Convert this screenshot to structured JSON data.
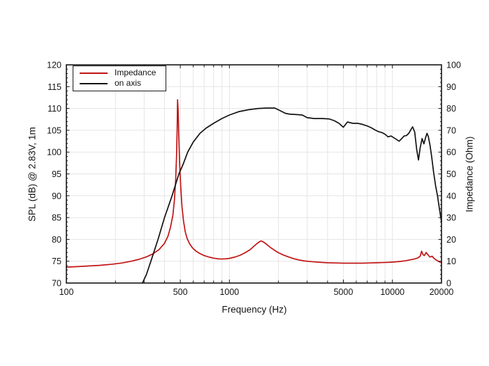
{
  "figure": {
    "background": "#ffffff",
    "frame_color": "#161616",
    "grid_color": "#e5e5e5",
    "tick_color": "#161616",
    "text_color": "#141414"
  },
  "chart_data": {
    "type": "line",
    "title": "",
    "x_scale": "log",
    "xlabel": "Frequency (Hz)",
    "ylabel_left": "SPL (dB) @ 2.83V, 1m",
    "ylabel_right": "Impedance (Ohm)",
    "x_range": [
      100,
      20000
    ],
    "y_left_range": [
      70,
      120
    ],
    "y_right_range": [
      0,
      100
    ],
    "x_tick_labels": [
      "100",
      "500",
      "1000",
      "5000",
      "10000",
      "20000"
    ],
    "x_tick_label_values": [
      100,
      500,
      1000,
      5000,
      10000,
      20000
    ],
    "x_minor_ticks": [
      100,
      200,
      300,
      400,
      500,
      600,
      700,
      800,
      900,
      1000,
      2000,
      3000,
      4000,
      5000,
      6000,
      7000,
      8000,
      9000,
      10000,
      20000
    ],
    "x_grid_lines": [
      200,
      300,
      400,
      500,
      600,
      700,
      800,
      900,
      1000,
      2000,
      3000,
      4000,
      5000,
      6000,
      7000,
      8000,
      9000,
      10000
    ],
    "y_left_major_step": 5,
    "y_left_minor_step": 1,
    "y_right_major_step": 10,
    "y_right_minor_step": 2,
    "grid": true,
    "legend_position": "top-left",
    "series": [
      {
        "name": "Impedance",
        "axis": "right",
        "unit": "Ohm",
        "color": "#c11414",
        "points": [
          [
            100,
            7.3
          ],
          [
            115,
            7.5
          ],
          [
            135,
            7.8
          ],
          [
            160,
            8.1
          ],
          [
            190,
            8.6
          ],
          [
            220,
            9.2
          ],
          [
            250,
            10.0
          ],
          [
            280,
            10.9
          ],
          [
            310,
            12.0
          ],
          [
            340,
            13.4
          ],
          [
            370,
            15.3
          ],
          [
            400,
            18.2
          ],
          [
            420,
            21.5
          ],
          [
            435,
            25.5
          ],
          [
            450,
            31.0
          ],
          [
            460,
            38.0
          ],
          [
            468,
            47.0
          ],
          [
            474,
            58.0
          ],
          [
            478,
            70.0
          ],
          [
            481,
            84.0
          ],
          [
            485,
            79.0
          ],
          [
            489,
            68.0
          ],
          [
            495,
            55.0
          ],
          [
            503,
            44.0
          ],
          [
            512,
            35.0
          ],
          [
            523,
            28.5
          ],
          [
            536,
            23.5
          ],
          [
            550,
            20.5
          ],
          [
            570,
            18.0
          ],
          [
            595,
            16.0
          ],
          [
            625,
            14.6
          ],
          [
            660,
            13.5
          ],
          [
            700,
            12.6
          ],
          [
            750,
            11.9
          ],
          [
            800,
            11.4
          ],
          [
            850,
            11.1
          ],
          [
            900,
            11.0
          ],
          [
            950,
            11.1
          ],
          [
            1000,
            11.3
          ],
          [
            1080,
            11.9
          ],
          [
            1160,
            12.7
          ],
          [
            1250,
            13.9
          ],
          [
            1340,
            15.3
          ],
          [
            1430,
            17.2
          ],
          [
            1500,
            18.5
          ],
          [
            1560,
            19.3
          ],
          [
            1620,
            18.8
          ],
          [
            1700,
            17.6
          ],
          [
            1800,
            16.1
          ],
          [
            1900,
            14.9
          ],
          [
            2000,
            13.9
          ],
          [
            2150,
            12.8
          ],
          [
            2300,
            12.0
          ],
          [
            2500,
            11.1
          ],
          [
            2700,
            10.5
          ],
          [
            2900,
            10.1
          ],
          [
            3200,
            9.8
          ],
          [
            3600,
            9.5
          ],
          [
            4000,
            9.3
          ],
          [
            4500,
            9.2
          ],
          [
            5000,
            9.1
          ],
          [
            5500,
            9.1
          ],
          [
            6000,
            9.1
          ],
          [
            6600,
            9.1
          ],
          [
            7200,
            9.2
          ],
          [
            8000,
            9.3
          ],
          [
            8800,
            9.4
          ],
          [
            9600,
            9.5
          ],
          [
            10400,
            9.7
          ],
          [
            11200,
            9.9
          ],
          [
            12000,
            10.2
          ],
          [
            12800,
            10.6
          ],
          [
            13600,
            11.0
          ],
          [
            14300,
            11.5
          ],
          [
            14800,
            12.3
          ],
          [
            15100,
            14.6
          ],
          [
            15400,
            13.0
          ],
          [
            15700,
            12.6
          ],
          [
            16100,
            14.0
          ],
          [
            16500,
            13.0
          ],
          [
            17000,
            11.9
          ],
          [
            17500,
            12.3
          ],
          [
            18000,
            11.3
          ],
          [
            18700,
            10.4
          ],
          [
            19400,
            9.7
          ],
          [
            20000,
            9.3
          ]
        ]
      },
      {
        "name": "on axis",
        "axis": "left",
        "unit": "dB",
        "color": "#131313",
        "points": [
          [
            293,
            70.0
          ],
          [
            310,
            72.0
          ],
          [
            330,
            75.0
          ],
          [
            365,
            80.0
          ],
          [
            400,
            85.0
          ],
          [
            445,
            90.0
          ],
          [
            490,
            95.0
          ],
          [
            520,
            97.2
          ],
          [
            555,
            100.0
          ],
          [
            600,
            102.3
          ],
          [
            660,
            104.3
          ],
          [
            720,
            105.5
          ],
          [
            800,
            106.6
          ],
          [
            900,
            107.7
          ],
          [
            1000,
            108.5
          ],
          [
            1150,
            109.3
          ],
          [
            1300,
            109.7
          ],
          [
            1500,
            110.0
          ],
          [
            1700,
            110.1
          ],
          [
            1900,
            110.1
          ],
          [
            2050,
            109.5
          ],
          [
            2200,
            108.9
          ],
          [
            2350,
            108.7
          ],
          [
            2600,
            108.6
          ],
          [
            2800,
            108.5
          ],
          [
            3000,
            107.9
          ],
          [
            3300,
            107.7
          ],
          [
            3700,
            107.7
          ],
          [
            4100,
            107.6
          ],
          [
            4400,
            107.2
          ],
          [
            4700,
            106.6
          ],
          [
            5000,
            105.7
          ],
          [
            5300,
            106.9
          ],
          [
            5700,
            106.6
          ],
          [
            6100,
            106.6
          ],
          [
            6500,
            106.4
          ],
          [
            7000,
            106.0
          ],
          [
            7400,
            105.6
          ],
          [
            7800,
            105.1
          ],
          [
            8200,
            104.7
          ],
          [
            8600,
            104.5
          ],
          [
            9000,
            104.1
          ],
          [
            9400,
            103.5
          ],
          [
            9800,
            103.7
          ],
          [
            10200,
            103.3
          ],
          [
            10600,
            102.9
          ],
          [
            11000,
            102.5
          ],
          [
            11400,
            103.1
          ],
          [
            11800,
            103.7
          ],
          [
            12200,
            103.8
          ],
          [
            12600,
            104.3
          ],
          [
            13000,
            105.2
          ],
          [
            13300,
            105.8
          ],
          [
            13700,
            104.6
          ],
          [
            14100,
            100.5
          ],
          [
            14450,
            98.2
          ],
          [
            14800,
            101.0
          ],
          [
            15200,
            103.1
          ],
          [
            15600,
            101.9
          ],
          [
            16000,
            103.4
          ],
          [
            16300,
            104.3
          ],
          [
            16600,
            103.6
          ],
          [
            17000,
            101.6
          ],
          [
            17400,
            99.0
          ],
          [
            17900,
            95.3
          ],
          [
            18400,
            92.3
          ],
          [
            18900,
            90.0
          ],
          [
            19500,
            86.6
          ],
          [
            20000,
            84.0
          ]
        ]
      }
    ]
  }
}
